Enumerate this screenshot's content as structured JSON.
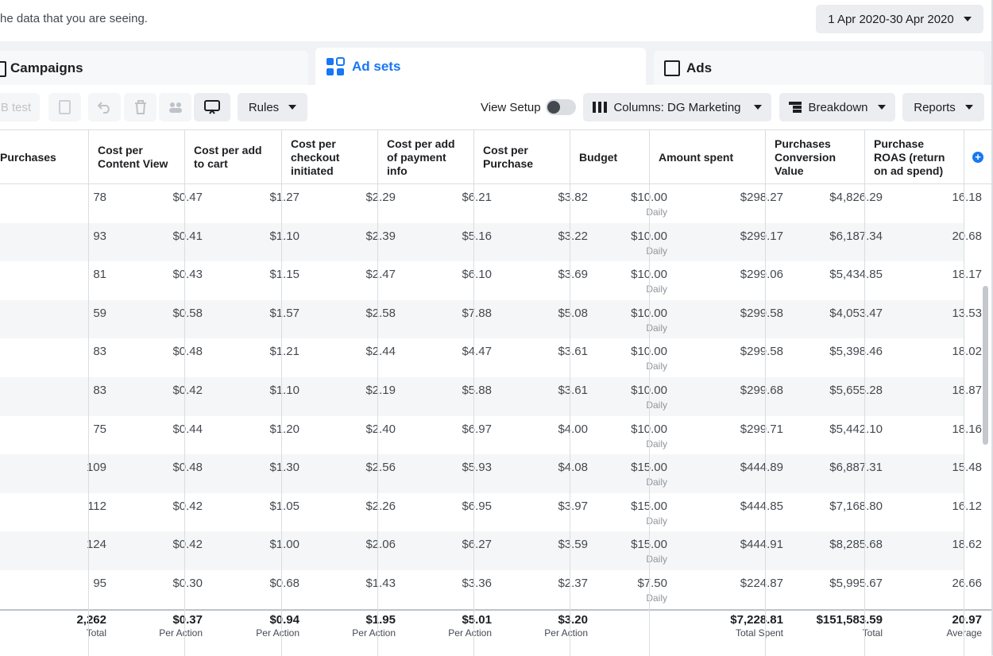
{
  "header": {
    "notice": "he data that you are seeing.",
    "date_range": "1 Apr 2020-30 Apr 2020"
  },
  "tabs": [
    "Campaigns",
    "Ad sets",
    "Ads"
  ],
  "toolbar": {
    "test": "B test",
    "rules": "Rules",
    "view_setup": "View Setup",
    "columns": "Columns: DG Marketing",
    "breakdown": "Breakdown",
    "reports": "Reports"
  },
  "table": {
    "columns": [
      "Purchases",
      "Cost per Content View",
      "Cost per add to cart",
      "Cost per checkout initiated",
      "Cost per add of payment info",
      "Cost per Purchase",
      "Budget",
      "Amount spent",
      "Purchases Conversion Value",
      "Purchase ROAS (return on ad spend)"
    ],
    "rows": [
      {
        "cells": [
          "78",
          "$0.47",
          "$1.27",
          "$2.29",
          "$6.21",
          "$3.82",
          "$10.00",
          "$298.27",
          "$4,826.29",
          "16.18"
        ],
        "budget_period": "Daily"
      },
      {
        "cells": [
          "93",
          "$0.41",
          "$1.10",
          "$2.39",
          "$5.16",
          "$3.22",
          "$10.00",
          "$299.17",
          "$6,187.34",
          "20.68"
        ],
        "budget_period": "Daily"
      },
      {
        "cells": [
          "81",
          "$0.43",
          "$1.15",
          "$2.47",
          "$6.10",
          "$3.69",
          "$10.00",
          "$299.06",
          "$5,434.85",
          "18.17"
        ],
        "budget_period": "Daily"
      },
      {
        "cells": [
          "59",
          "$0.58",
          "$1.57",
          "$2.58",
          "$7.88",
          "$5.08",
          "$10.00",
          "$299.58",
          "$4,053.47",
          "13.53"
        ],
        "budget_period": "Daily"
      },
      {
        "cells": [
          "83",
          "$0.48",
          "$1.21",
          "$2.44",
          "$4.47",
          "$3.61",
          "$10.00",
          "$299.58",
          "$5,398.46",
          "18.02"
        ],
        "budget_period": "Daily"
      },
      {
        "cells": [
          "83",
          "$0.42",
          "$1.10",
          "$2.19",
          "$5.88",
          "$3.61",
          "$10.00",
          "$299.68",
          "$5,655.28",
          "18.87"
        ],
        "budget_period": "Daily"
      },
      {
        "cells": [
          "75",
          "$0.44",
          "$1.20",
          "$2.40",
          "$6.97",
          "$4.00",
          "$10.00",
          "$299.71",
          "$5,442.10",
          "18.16"
        ],
        "budget_period": "Daily"
      },
      {
        "cells": [
          "109",
          "$0.48",
          "$1.30",
          "$2.56",
          "$5.93",
          "$4.08",
          "$15.00",
          "$444.89",
          "$6,887.31",
          "15.48"
        ],
        "budget_period": "Daily"
      },
      {
        "cells": [
          "112",
          "$0.42",
          "$1.05",
          "$2.26",
          "$6.95",
          "$3.97",
          "$15.00",
          "$444.85",
          "$7,168.80",
          "16.12"
        ],
        "budget_period": "Daily"
      },
      {
        "cells": [
          "124",
          "$0.42",
          "$1.00",
          "$2.06",
          "$6.27",
          "$3.59",
          "$15.00",
          "$444.91",
          "$8,285.68",
          "18.62"
        ],
        "budget_period": "Daily"
      },
      {
        "cells": [
          "95",
          "$0.30",
          "$0.68",
          "$1.43",
          "$3.36",
          "$2.37",
          "$7.50",
          "$224.87",
          "$5,995.67",
          "26.66"
        ],
        "budget_period": "Daily"
      }
    ],
    "totals": [
      {
        "value": "2,262",
        "label": "Total"
      },
      {
        "value": "$0.37",
        "label": "Per Action"
      },
      {
        "value": "$0.94",
        "label": "Per Action"
      },
      {
        "value": "$1.95",
        "label": "Per Action"
      },
      {
        "value": "$5.01",
        "label": "Per Action"
      },
      {
        "value": "$3.20",
        "label": "Per Action"
      },
      null,
      {
        "value": "$7,228.81",
        "label": "Total Spent"
      },
      {
        "value": "$151,583.59",
        "label": "Total"
      },
      {
        "value": "20.97",
        "label": "Average"
      }
    ]
  }
}
